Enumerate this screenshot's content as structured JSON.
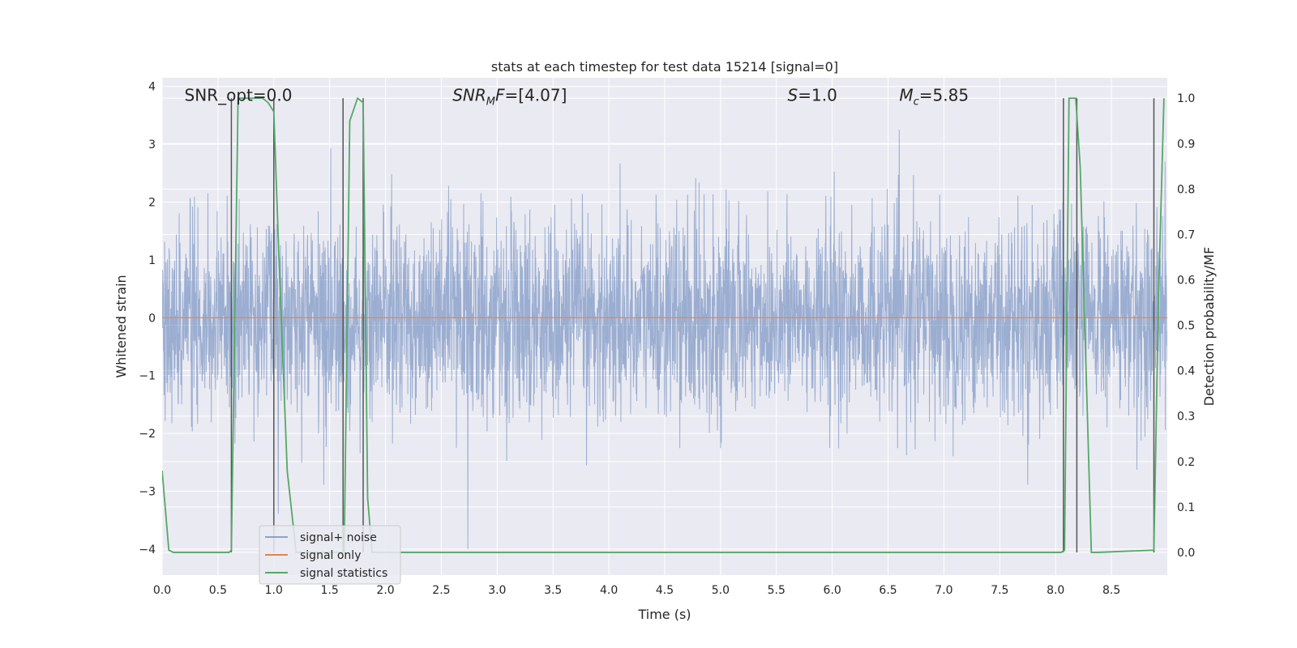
{
  "chart_data": {
    "type": "line",
    "title": "stats at each timestep for test data 15214 [signal=0]",
    "xlabel": "Time (s)",
    "ylabel": "Whitened strain",
    "y2label": "Detection probability/MF",
    "xlim": [
      0.0,
      9.0
    ],
    "ylim": [
      -4.45,
      4.15
    ],
    "y2lim": [
      -0.05,
      1.045
    ],
    "xticks": [
      0.0,
      0.5,
      1.0,
      1.5,
      2.0,
      2.5,
      3.0,
      3.5,
      4.0,
      4.5,
      5.0,
      5.5,
      6.0,
      6.5,
      7.0,
      7.5,
      8.0,
      8.5
    ],
    "xtick_labels": [
      "0.0",
      "0.5",
      "1.0",
      "1.5",
      "2.0",
      "2.5",
      "3.0",
      "3.5",
      "4.0",
      "4.5",
      "5.0",
      "5.5",
      "6.0",
      "6.5",
      "7.0",
      "7.5",
      "8.0",
      "8.5"
    ],
    "yticks": [
      -4,
      -3,
      -2,
      -1,
      0,
      1,
      2,
      3,
      4
    ],
    "ytick_labels": [
      "−4",
      "−3",
      "−2",
      "−1",
      "0",
      "1",
      "2",
      "3",
      "4"
    ],
    "y2ticks": [
      0.0,
      0.1,
      0.2,
      0.3,
      0.4,
      0.5,
      0.6,
      0.7,
      0.8,
      0.9,
      1.0
    ],
    "y2tick_labels": [
      "0.0",
      "0.1",
      "0.2",
      "0.3",
      "0.4",
      "0.5",
      "0.6",
      "0.7",
      "0.8",
      "0.9",
      "1.0"
    ],
    "grid": true,
    "legend_position": "lower-left",
    "series": [
      {
        "name": "signal+ noise",
        "color": "#4c72b0",
        "axis": "left",
        "note_kind": "dense noise trace",
        "typical_low": -1.7,
        "typical_high": 1.5,
        "peak_high": 3.8,
        "peak_low": -4.0,
        "duration": 9.0
      },
      {
        "name": "signal only",
        "color": "#dd8452",
        "axis": "left",
        "x": [
          0.0,
          9.0
        ],
        "y": [
          0.0,
          0.0
        ]
      },
      {
        "name": "signal statistics",
        "color": "#55a868",
        "axis": "right",
        "x": [
          0.0,
          0.06,
          0.1,
          0.6,
          0.62,
          0.68,
          0.72,
          0.9,
          0.95,
          1.0,
          1.05,
          1.12,
          1.2,
          1.25,
          1.52,
          1.58,
          1.63,
          1.68,
          1.75,
          1.8,
          1.84,
          1.88,
          1.95,
          8.05,
          8.08,
          8.12,
          8.18,
          8.22,
          8.32,
          8.38,
          8.88,
          8.92,
          8.97
        ],
        "y": [
          0.18,
          0.005,
          0.0,
          0.0,
          0.005,
          1.0,
          1.0,
          1.0,
          0.99,
          0.97,
          0.62,
          0.18,
          0.0,
          0.0,
          0.0,
          0.0,
          0.0,
          0.95,
          1.0,
          0.99,
          0.12,
          0.0,
          0.0,
          0.0,
          0.005,
          1.0,
          1.0,
          0.85,
          0.0,
          0.0,
          0.005,
          0.55,
          1.0
        ]
      }
    ],
    "vertical_markers": {
      "color": "#555555",
      "x": [
        0.62,
        1.0,
        1.62,
        1.8,
        8.07,
        8.19,
        8.88
      ]
    },
    "annotations": [
      {
        "id": "snr-opt",
        "text": "SNR_opt=0.0",
        "x": 0.2,
        "y": 3.85
      },
      {
        "id": "snr-mf",
        "text": "=[4.07]",
        "label": "SNR",
        "sub": "M",
        "suffix": "F",
        "x": 2.6,
        "y": 3.85
      },
      {
        "id": "s-val",
        "text": "=1.0",
        "label": "S",
        "x": 5.6,
        "y": 3.85
      },
      {
        "id": "mc-val",
        "text": "=5.85",
        "label": "M",
        "sub": "c",
        "x": 6.6,
        "y": 3.85
      }
    ]
  }
}
